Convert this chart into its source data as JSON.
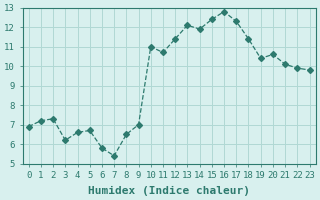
{
  "x": [
    0,
    1,
    2,
    3,
    4,
    5,
    6,
    7,
    8,
    9,
    10,
    11,
    12,
    13,
    14,
    15,
    16,
    17,
    18,
    19,
    20,
    21,
    22,
    23
  ],
  "y": [
    6.9,
    7.2,
    7.3,
    6.2,
    6.6,
    6.7,
    5.8,
    5.4,
    6.5,
    7.0,
    11.0,
    10.7,
    11.4,
    12.1,
    11.9,
    12.4,
    12.8,
    12.3,
    11.4,
    10.4,
    10.6,
    10.1,
    9.9,
    9.8
  ],
  "line_color": "#2d7a6e",
  "marker": "D",
  "marker_size": 3,
  "linewidth": 0.9,
  "bg_color": "#d8f0ee",
  "grid_color": "#b0d8d4",
  "xlabel": "Humidex (Indice chaleur)",
  "xlim": [
    -0.5,
    23.5
  ],
  "ylim": [
    5,
    13
  ],
  "yticks": [
    5,
    6,
    7,
    8,
    9,
    10,
    11,
    12,
    13
  ],
  "xticks": [
    0,
    1,
    2,
    3,
    4,
    5,
    6,
    7,
    8,
    9,
    10,
    11,
    12,
    13,
    14,
    15,
    16,
    17,
    18,
    19,
    20,
    21,
    22,
    23
  ],
  "tick_label_fontsize": 6.5,
  "xlabel_fontsize": 8,
  "tick_color": "#2d7a6e",
  "axis_color": "#2d7a6e"
}
